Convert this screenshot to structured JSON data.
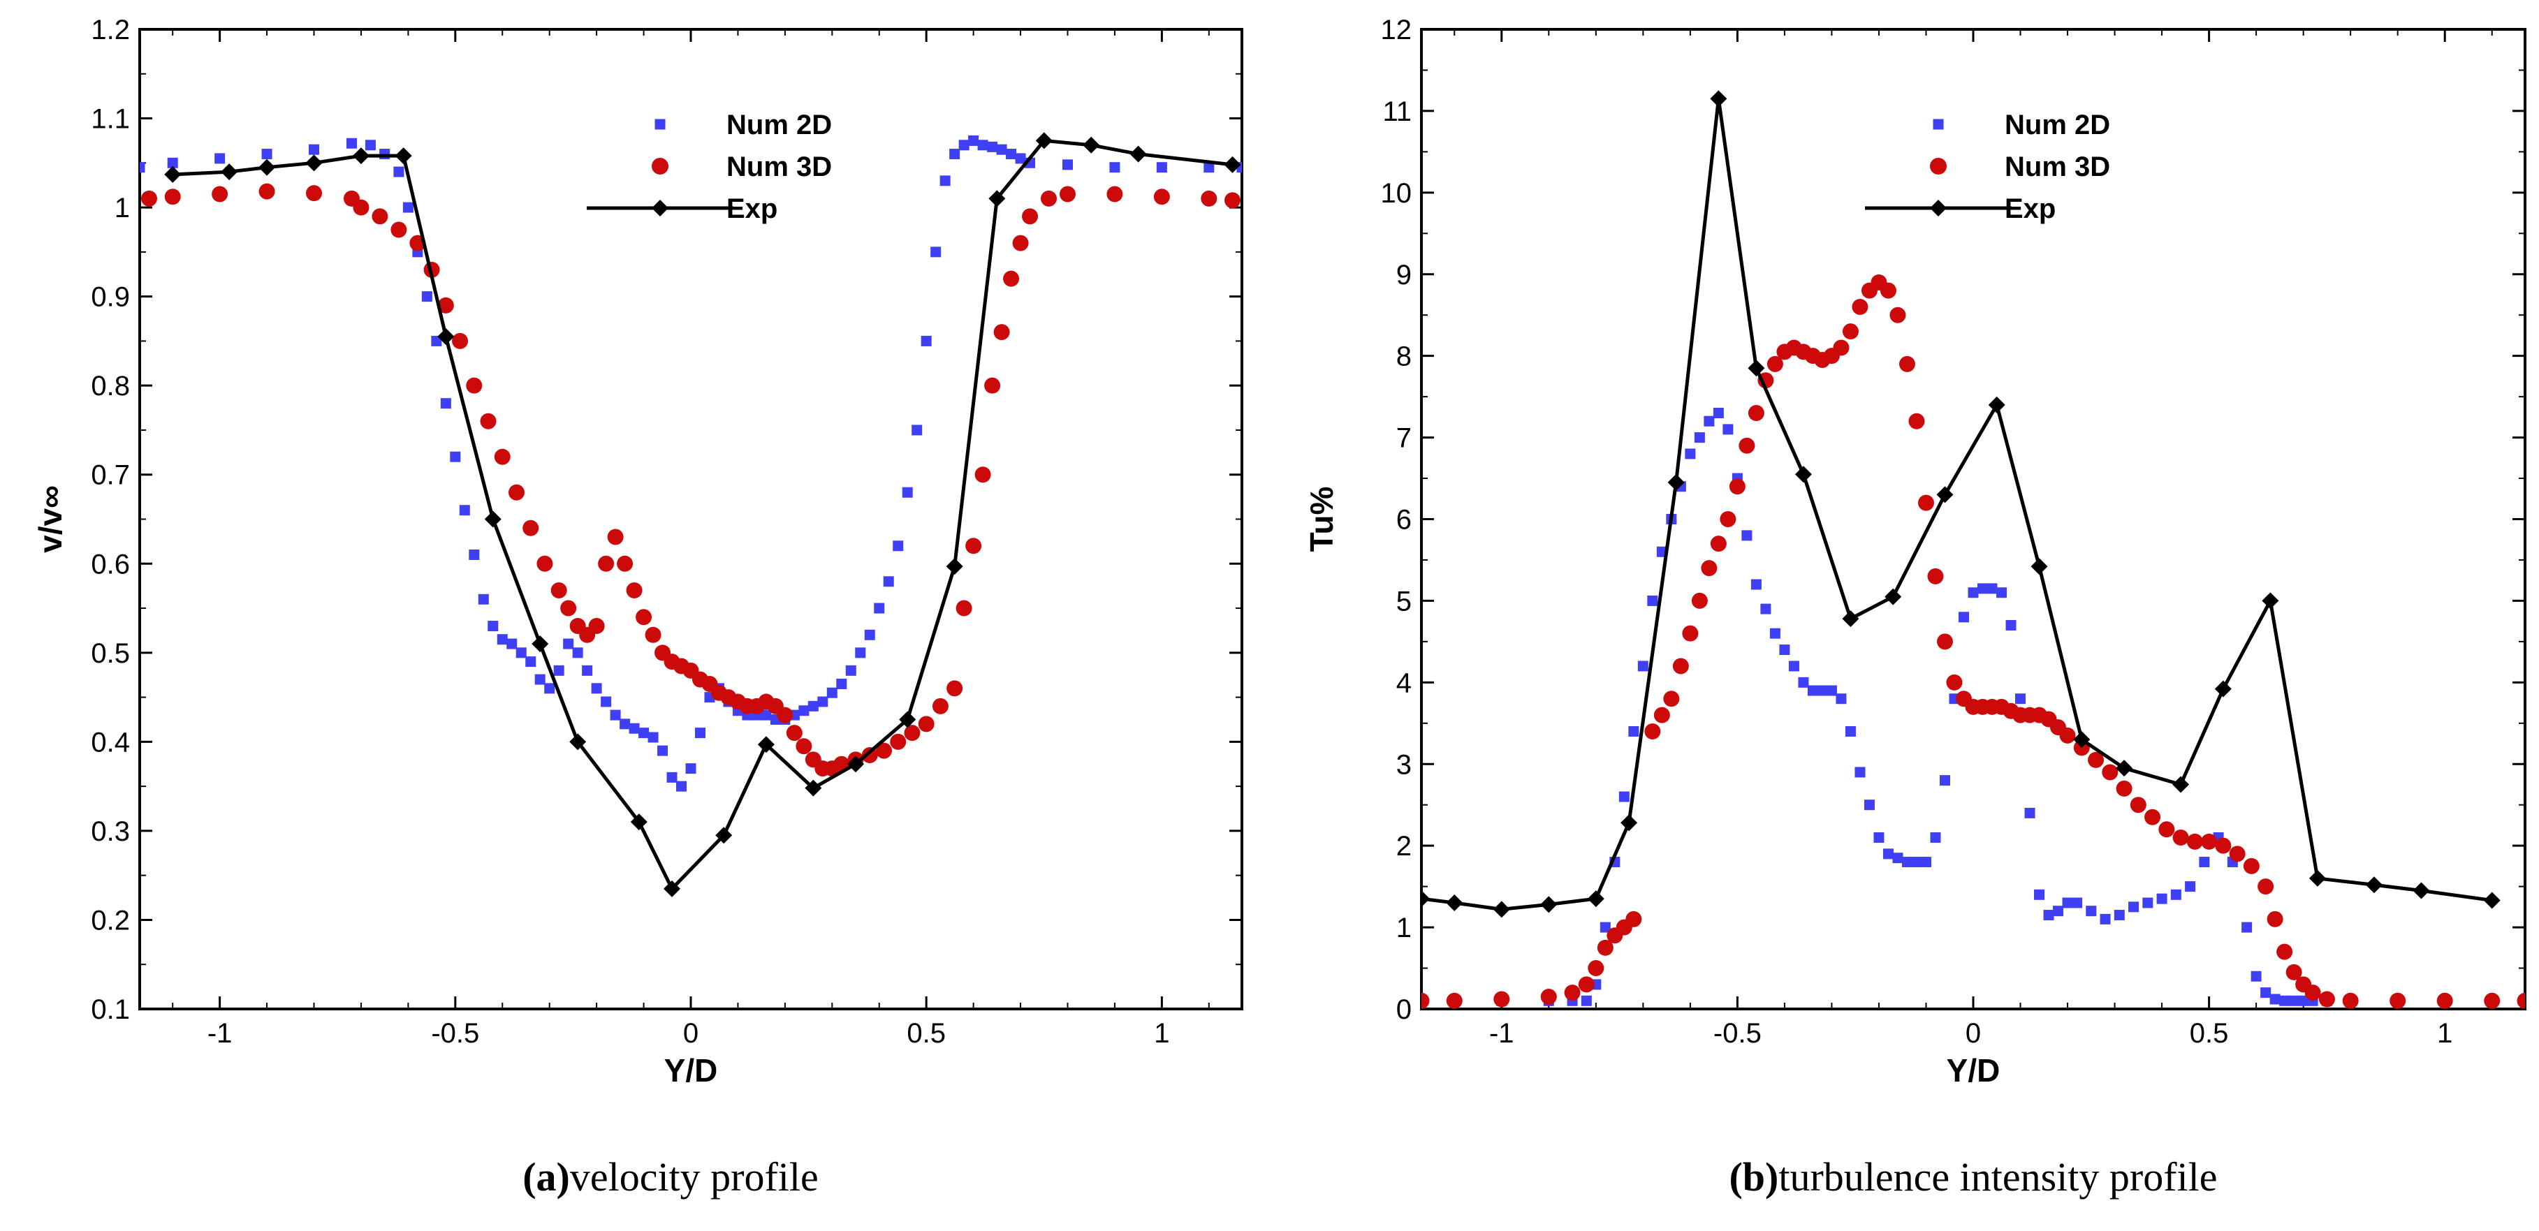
{
  "chart_data": [
    {
      "type": "line",
      "panel": "a",
      "xlabel": "Y/D",
      "ylabel": "v/v∞",
      "xlim": [
        -1.17,
        1.17
      ],
      "ylim": [
        0.1,
        1.2
      ],
      "xticks": [
        -1,
        -0.5,
        0,
        0.5,
        1
      ],
      "yticks": [
        0.1,
        0.2,
        0.3,
        0.4,
        0.5,
        0.6,
        0.7,
        0.8,
        0.9,
        1,
        1.1,
        1.2
      ],
      "ytick_labels": [
        "0.1",
        "0.2",
        "0.3",
        "0.4",
        "0.5",
        "0.6",
        "0.7",
        "0.8",
        "0.9",
        "1",
        "1.1",
        "1.2"
      ],
      "grid": false,
      "legend_position": "top-center",
      "caption_letter": "(a)",
      "caption_text": "velocity profile",
      "series": [
        {
          "name": "Num 2D",
          "style": "square-markers",
          "color": "#3f3ff5",
          "x": [
            -1.17,
            -1.1,
            -1.0,
            -0.9,
            -0.8,
            -0.72,
            -0.68,
            -0.65,
            -0.62,
            -0.6,
            -0.58,
            -0.56,
            -0.54,
            -0.52,
            -0.5,
            -0.48,
            -0.46,
            -0.44,
            -0.42,
            -0.4,
            -0.38,
            -0.36,
            -0.34,
            -0.32,
            -0.3,
            -0.28,
            -0.26,
            -0.24,
            -0.22,
            -0.2,
            -0.18,
            -0.16,
            -0.14,
            -0.12,
            -0.1,
            -0.08,
            -0.06,
            -0.04,
            -0.02,
            0.0,
            0.02,
            0.04,
            0.06,
            0.08,
            0.1,
            0.12,
            0.14,
            0.16,
            0.18,
            0.2,
            0.22,
            0.24,
            0.26,
            0.28,
            0.3,
            0.32,
            0.34,
            0.36,
            0.38,
            0.4,
            0.42,
            0.44,
            0.46,
            0.48,
            0.5,
            0.52,
            0.54,
            0.56,
            0.58,
            0.6,
            0.62,
            0.64,
            0.66,
            0.68,
            0.7,
            0.72,
            0.8,
            0.9,
            1.0,
            1.1,
            1.17
          ],
          "y": [
            1.045,
            1.05,
            1.055,
            1.06,
            1.065,
            1.072,
            1.07,
            1.06,
            1.04,
            1.0,
            0.95,
            0.9,
            0.85,
            0.78,
            0.72,
            0.66,
            0.61,
            0.56,
            0.53,
            0.515,
            0.51,
            0.5,
            0.49,
            0.47,
            0.46,
            0.48,
            0.51,
            0.5,
            0.48,
            0.46,
            0.445,
            0.43,
            0.42,
            0.415,
            0.41,
            0.405,
            0.39,
            0.36,
            0.35,
            0.37,
            0.41,
            0.45,
            0.46,
            0.445,
            0.435,
            0.43,
            0.43,
            0.43,
            0.425,
            0.425,
            0.43,
            0.435,
            0.44,
            0.445,
            0.455,
            0.465,
            0.48,
            0.5,
            0.52,
            0.55,
            0.58,
            0.62,
            0.68,
            0.75,
            0.85,
            0.95,
            1.03,
            1.06,
            1.07,
            1.075,
            1.07,
            1.068,
            1.065,
            1.06,
            1.055,
            1.05,
            1.048,
            1.045,
            1.045,
            1.045,
            1.045
          ]
        },
        {
          "name": "Num 3D",
          "style": "circle-markers",
          "color": "#cc0a0a",
          "x": [
            -1.15,
            -1.1,
            -1.0,
            -0.9,
            -0.8,
            -0.72,
            -0.7,
            -0.66,
            -0.62,
            -0.58,
            -0.55,
            -0.52,
            -0.49,
            -0.46,
            -0.43,
            -0.4,
            -0.37,
            -0.34,
            -0.31,
            -0.28,
            -0.26,
            -0.24,
            -0.22,
            -0.2,
            -0.18,
            -0.16,
            -0.14,
            -0.12,
            -0.1,
            -0.08,
            -0.06,
            -0.04,
            -0.02,
            0.0,
            0.02,
            0.04,
            0.06,
            0.08,
            0.1,
            0.12,
            0.14,
            0.16,
            0.18,
            0.2,
            0.22,
            0.24,
            0.26,
            0.28,
            0.3,
            0.32,
            0.35,
            0.38,
            0.41,
            0.44,
            0.47,
            0.5,
            0.53,
            0.56,
            0.58,
            0.6,
            0.62,
            0.64,
            0.66,
            0.68,
            0.7,
            0.72,
            0.76,
            0.8,
            0.9,
            1.0,
            1.1,
            1.15
          ],
          "y": [
            1.01,
            1.012,
            1.015,
            1.018,
            1.016,
            1.01,
            1.0,
            0.99,
            0.975,
            0.96,
            0.93,
            0.89,
            0.85,
            0.8,
            0.76,
            0.72,
            0.68,
            0.64,
            0.6,
            0.57,
            0.55,
            0.53,
            0.52,
            0.53,
            0.6,
            0.63,
            0.6,
            0.57,
            0.54,
            0.52,
            0.5,
            0.49,
            0.485,
            0.48,
            0.47,
            0.465,
            0.455,
            0.45,
            0.445,
            0.44,
            0.44,
            0.445,
            0.44,
            0.43,
            0.41,
            0.395,
            0.38,
            0.37,
            0.37,
            0.375,
            0.38,
            0.385,
            0.39,
            0.4,
            0.41,
            0.42,
            0.44,
            0.46,
            0.55,
            0.62,
            0.7,
            0.8,
            0.86,
            0.92,
            0.96,
            0.99,
            1.01,
            1.015,
            1.015,
            1.012,
            1.01,
            1.008
          ]
        },
        {
          "name": "Exp",
          "style": "line-diamond",
          "color": "#000000",
          "x": [
            -1.1,
            -0.98,
            -0.9,
            -0.8,
            -0.7,
            -0.61,
            -0.52,
            -0.42,
            -0.32,
            -0.24,
            -0.11,
            -0.04,
            0.07,
            0.16,
            0.26,
            0.35,
            0.46,
            0.56,
            0.65,
            0.75,
            0.85,
            0.95,
            1.15
          ],
          "y": [
            1.037,
            1.04,
            1.045,
            1.05,
            1.058,
            1.058,
            0.855,
            0.65,
            0.51,
            0.4,
            0.31,
            0.235,
            0.295,
            0.397,
            0.348,
            0.375,
            0.425,
            0.597,
            1.01,
            1.075,
            1.07,
            1.06,
            1.048
          ]
        }
      ]
    },
    {
      "type": "line",
      "panel": "b",
      "xlabel": "Y/D",
      "ylabel": "Tu%",
      "xlim": [
        -1.17,
        1.17
      ],
      "ylim": [
        0,
        12
      ],
      "xticks": [
        -1,
        -0.5,
        0,
        0.5,
        1
      ],
      "yticks": [
        0,
        1,
        2,
        3,
        4,
        5,
        6,
        7,
        8,
        9,
        10,
        11,
        12
      ],
      "ytick_labels": [
        "0",
        "1",
        "2",
        "3",
        "4",
        "5",
        "6",
        "7",
        "8",
        "9",
        "10",
        "11",
        "12"
      ],
      "grid": false,
      "legend_position": "top-center",
      "caption_letter": "(b)",
      "caption_text": "turbulence intensity profile",
      "series": [
        {
          "name": "Num 2D",
          "style": "square-markers",
          "color": "#3f3ff5",
          "x": [
            -1.17,
            -1.1,
            -1.0,
            -0.9,
            -0.85,
            -0.82,
            -0.8,
            -0.78,
            -0.76,
            -0.74,
            -0.72,
            -0.7,
            -0.68,
            -0.66,
            -0.64,
            -0.62,
            -0.6,
            -0.58,
            -0.56,
            -0.54,
            -0.52,
            -0.5,
            -0.48,
            -0.46,
            -0.44,
            -0.42,
            -0.4,
            -0.38,
            -0.36,
            -0.34,
            -0.32,
            -0.3,
            -0.28,
            -0.26,
            -0.24,
            -0.22,
            -0.2,
            -0.18,
            -0.16,
            -0.14,
            -0.12,
            -0.1,
            -0.08,
            -0.06,
            -0.04,
            -0.02,
            0.0,
            0.02,
            0.04,
            0.06,
            0.08,
            0.1,
            0.12,
            0.14,
            0.16,
            0.18,
            0.2,
            0.22,
            0.25,
            0.28,
            0.31,
            0.34,
            0.37,
            0.4,
            0.43,
            0.46,
            0.49,
            0.52,
            0.55,
            0.58,
            0.6,
            0.62,
            0.64,
            0.66,
            0.68,
            0.7,
            0.72,
            0.75,
            0.8,
            0.9,
            1.0,
            1.1,
            1.17
          ],
          "y": [
            0.1,
            0.1,
            0.1,
            0.1,
            0.1,
            0.1,
            0.3,
            1.0,
            1.8,
            2.6,
            3.4,
            4.2,
            5.0,
            5.6,
            6.0,
            6.4,
            6.8,
            7.0,
            7.2,
            7.3,
            7.1,
            6.5,
            5.8,
            5.2,
            4.9,
            4.6,
            4.4,
            4.2,
            4.0,
            3.9,
            3.9,
            3.9,
            3.8,
            3.4,
            2.9,
            2.5,
            2.1,
            1.9,
            1.85,
            1.8,
            1.8,
            1.8,
            2.1,
            2.8,
            3.8,
            4.8,
            5.1,
            5.15,
            5.15,
            5.1,
            4.7,
            3.8,
            2.4,
            1.4,
            1.15,
            1.2,
            1.3,
            1.3,
            1.2,
            1.1,
            1.15,
            1.25,
            1.3,
            1.35,
            1.4,
            1.5,
            1.8,
            2.1,
            1.8,
            1.0,
            0.4,
            0.2,
            0.12,
            0.1,
            0.1,
            0.1,
            0.1,
            0.1,
            0.1,
            0.1,
            0.1,
            0.1,
            0.1
          ]
        },
        {
          "name": "Num 3D",
          "style": "circle-markers",
          "color": "#cc0a0a",
          "x": [
            -1.17,
            -1.1,
            -1.0,
            -0.9,
            -0.85,
            -0.82,
            -0.8,
            -0.78,
            -0.76,
            -0.74,
            -0.72,
            -0.7,
            -0.68,
            -0.66,
            -0.64,
            -0.62,
            -0.6,
            -0.58,
            -0.56,
            -0.54,
            -0.52,
            -0.5,
            -0.48,
            -0.46,
            -0.44,
            -0.42,
            -0.4,
            -0.38,
            -0.36,
            -0.34,
            -0.32,
            -0.3,
            -0.28,
            -0.26,
            -0.24,
            -0.22,
            -0.2,
            -0.18,
            -0.16,
            -0.14,
            -0.12,
            -0.1,
            -0.08,
            -0.06,
            -0.04,
            -0.02,
            0.0,
            0.02,
            0.04,
            0.06,
            0.08,
            0.1,
            0.12,
            0.14,
            0.16,
            0.18,
            0.2,
            0.23,
            0.26,
            0.29,
            0.32,
            0.35,
            0.38,
            0.41,
            0.44,
            0.47,
            0.5,
            0.53,
            0.56,
            0.59,
            0.62,
            0.64,
            0.66,
            0.68,
            0.7,
            0.72,
            0.75,
            0.8,
            0.9,
            1.0,
            1.1,
            1.17
          ],
          "y": [
            0.1,
            0.1,
            0.12,
            0.15,
            0.2,
            0.3,
            0.5,
            0.75,
            0.9,
            1.0,
            1.1,
            null,
            3.4,
            3.6,
            3.8,
            4.2,
            4.6,
            5.0,
            5.4,
            5.7,
            6.0,
            6.4,
            6.9,
            7.3,
            7.7,
            7.9,
            8.05,
            8.1,
            8.05,
            8.0,
            7.95,
            8.0,
            8.1,
            8.3,
            8.6,
            8.8,
            8.9,
            8.8,
            8.5,
            7.9,
            7.2,
            6.2,
            5.3,
            4.5,
            4.0,
            3.8,
            3.7,
            3.7,
            3.7,
            3.7,
            3.65,
            3.6,
            3.6,
            3.6,
            3.55,
            3.45,
            3.35,
            3.2,
            3.05,
            2.9,
            2.7,
            2.5,
            2.35,
            2.2,
            2.1,
            2.05,
            2.05,
            2.0,
            1.9,
            1.75,
            1.5,
            1.1,
            0.7,
            0.45,
            0.3,
            0.2,
            0.12,
            0.1,
            0.1,
            0.1,
            0.1,
            0.1
          ]
        },
        {
          "name": "Exp",
          "style": "line-diamond",
          "color": "#000000",
          "x": [
            -1.17,
            -1.1,
            -1.0,
            -0.9,
            -0.8,
            -0.73,
            -0.63,
            -0.54,
            -0.46,
            -0.36,
            -0.26,
            -0.17,
            -0.06,
            0.05,
            0.14,
            0.23,
            0.32,
            0.44,
            0.53,
            0.63,
            0.73,
            0.85,
            0.95,
            1.1
          ],
          "y": [
            1.35,
            1.3,
            1.22,
            1.28,
            1.35,
            2.28,
            6.45,
            11.15,
            7.85,
            6.55,
            4.78,
            5.05,
            6.3,
            7.4,
            5.42,
            3.3,
            2.95,
            2.75,
            3.92,
            5.0,
            1.6,
            1.52,
            1.45,
            1.33
          ]
        }
      ]
    }
  ]
}
